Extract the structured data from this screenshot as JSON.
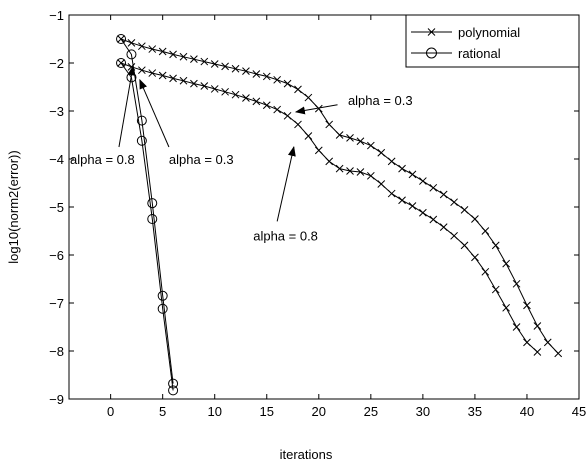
{
  "chart_data": {
    "type": "line",
    "title": "",
    "xlabel": "iterations",
    "ylabel": "log10(norm2(error))",
    "xlim": [
      -4,
      45
    ],
    "ylim": [
      -9,
      -1
    ],
    "xticks": [
      0,
      5,
      10,
      15,
      20,
      25,
      30,
      35,
      40,
      45
    ],
    "xtick_labels": [
      "0",
      "5",
      "10",
      "15",
      "20",
      "25",
      "30",
      "35",
      "40",
      "45"
    ],
    "yticks": [
      -1,
      -2,
      -3,
      -4,
      -5,
      -6,
      -7,
      -8,
      -9
    ],
    "ytick_labels": [
      "−1",
      "−2",
      "−3",
      "−4",
      "−5",
      "−6",
      "−7",
      "−8",
      "−9"
    ],
    "grid": false,
    "legend": {
      "position": "top-right",
      "entries": [
        {
          "label": "polynomial",
          "marker": "x"
        },
        {
          "label": "rational",
          "marker": "o"
        }
      ]
    },
    "series": [
      {
        "name": "polynomial",
        "marker": "x",
        "color": "#000000",
        "x": [
          1,
          2,
          3,
          4,
          5,
          6,
          7,
          8,
          9,
          10,
          11,
          12,
          13,
          14,
          15,
          16,
          17,
          18,
          19,
          20,
          21,
          22,
          23,
          24,
          25,
          26,
          27,
          28,
          29,
          30,
          31,
          32,
          33,
          34,
          35,
          36,
          37,
          38,
          39,
          40,
          41,
          42,
          43
        ],
        "y": [
          -1.5,
          -1.58,
          -1.65,
          -1.71,
          -1.76,
          -1.82,
          -1.87,
          -1.92,
          -1.97,
          -2.02,
          -2.07,
          -2.12,
          -2.17,
          -2.23,
          -2.28,
          -2.35,
          -2.43,
          -2.55,
          -2.72,
          -2.95,
          -3.28,
          -3.5,
          -3.56,
          -3.63,
          -3.72,
          -3.87,
          -4.05,
          -4.2,
          -4.32,
          -4.46,
          -4.6,
          -4.74,
          -4.9,
          -5.06,
          -5.25,
          -5.5,
          -5.8,
          -6.18,
          -6.6,
          -7.05,
          -7.48,
          -7.82,
          -8.05
        ]
      },
      {
        "name": "polynomial",
        "marker": "x",
        "color": "#000000",
        "x": [
          1,
          2,
          3,
          4,
          5,
          6,
          7,
          8,
          9,
          10,
          11,
          12,
          13,
          14,
          15,
          16,
          17,
          18,
          19,
          20,
          21,
          22,
          23,
          24,
          25,
          26,
          27,
          28,
          29,
          30,
          31,
          32,
          33,
          34,
          35,
          36,
          37,
          38,
          39,
          40,
          41
        ],
        "y": [
          -2.0,
          -2.08,
          -2.15,
          -2.21,
          -2.26,
          -2.32,
          -2.37,
          -2.43,
          -2.48,
          -2.54,
          -2.6,
          -2.66,
          -2.73,
          -2.8,
          -2.88,
          -2.97,
          -3.1,
          -3.28,
          -3.52,
          -3.82,
          -4.05,
          -4.2,
          -4.25,
          -4.27,
          -4.35,
          -4.52,
          -4.72,
          -4.86,
          -4.98,
          -5.12,
          -5.26,
          -5.42,
          -5.6,
          -5.8,
          -6.05,
          -6.35,
          -6.72,
          -7.1,
          -7.5,
          -7.82,
          -8.02
        ]
      },
      {
        "name": "rational",
        "marker": "o",
        "color": "#000000",
        "x": [
          1,
          2,
          3,
          4,
          5,
          6
        ],
        "y": [
          -1.5,
          -1.82,
          -3.2,
          -4.92,
          -6.85,
          -8.68
        ]
      },
      {
        "name": "rational",
        "marker": "o",
        "color": "#000000",
        "x": [
          1,
          2,
          3,
          4,
          5,
          6
        ],
        "y": [
          -2.0,
          -2.3,
          -3.62,
          -5.25,
          -7.12,
          -8.82
        ]
      }
    ],
    "annotations": [
      {
        "text": "alpha = 0.3",
        "text_x": 22.8,
        "text_y": -2.87,
        "arrow_to": [
          17.8,
          -3.02
        ],
        "arrow_from": [
          21.8,
          -2.87
        ]
      },
      {
        "text": "alpha = 0.8",
        "text_x": 13.7,
        "text_y": -5.7,
        "arrow_to": [
          17.6,
          -3.75
        ],
        "arrow_from": [
          16.0,
          -5.3
        ]
      },
      {
        "text": "alpha = 0.3",
        "text_x": 5.6,
        "text_y": -4.1,
        "arrow_to": [
          2.8,
          -2.35
        ],
        "arrow_from": [
          5.6,
          -3.75
        ]
      },
      {
        "text": "alpha = 0.8",
        "text_x": -3.9,
        "text_y": -4.1,
        "arrow_to": [
          2.15,
          -2.07
        ],
        "arrow_from": [
          0.8,
          -3.75
        ]
      }
    ]
  }
}
